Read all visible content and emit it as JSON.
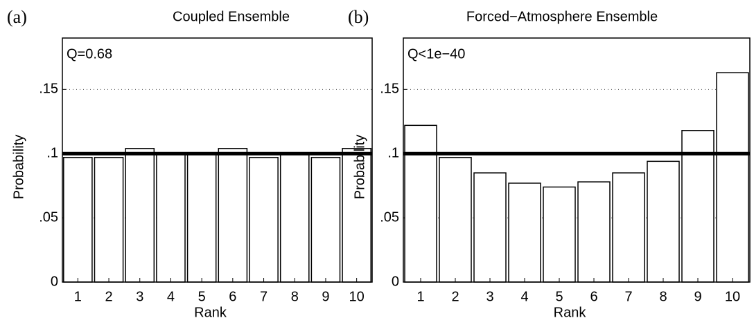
{
  "chart_data": [
    {
      "type": "bar",
      "panel_label": "(a)",
      "title": "Coupled Ensemble",
      "annotation": "Q=0.68",
      "xlabel": "Rank",
      "ylabel": "Probability",
      "categories": [
        1,
        2,
        3,
        4,
        5,
        6,
        7,
        8,
        9,
        10
      ],
      "values": [
        0.097,
        0.097,
        0.104,
        0.1,
        0.1,
        0.104,
        0.097,
        0.1,
        0.097,
        0.104
      ],
      "color": "#ffffff",
      "ylim": [
        0,
        0.19
      ],
      "yticks": [
        0,
        {
          "value": 0.05,
          "label": ".05"
        },
        {
          "value": 0.1,
          "label": ".1"
        },
        {
          "value": 0.15,
          "label": ".15"
        }
      ],
      "grid": true,
      "reference_line": 0.1
    },
    {
      "type": "bar",
      "panel_label": "(b)",
      "title": "Forced−Atmosphere Ensemble",
      "annotation": "Q<1e−40",
      "xlabel": "Rank",
      "ylabel": "Probability",
      "categories": [
        1,
        2,
        3,
        4,
        5,
        6,
        7,
        8,
        9,
        10
      ],
      "values": [
        0.122,
        0.097,
        0.085,
        0.077,
        0.074,
        0.078,
        0.085,
        0.094,
        0.118,
        0.163
      ],
      "color": "#ffffff",
      "ylim": [
        0,
        0.19
      ],
      "yticks": [
        0,
        {
          "value": 0.05,
          "label": ".05"
        },
        {
          "value": 0.1,
          "label": ".1"
        },
        {
          "value": 0.15,
          "label": ".15"
        }
      ],
      "grid": true,
      "reference_line": 0.1
    }
  ]
}
